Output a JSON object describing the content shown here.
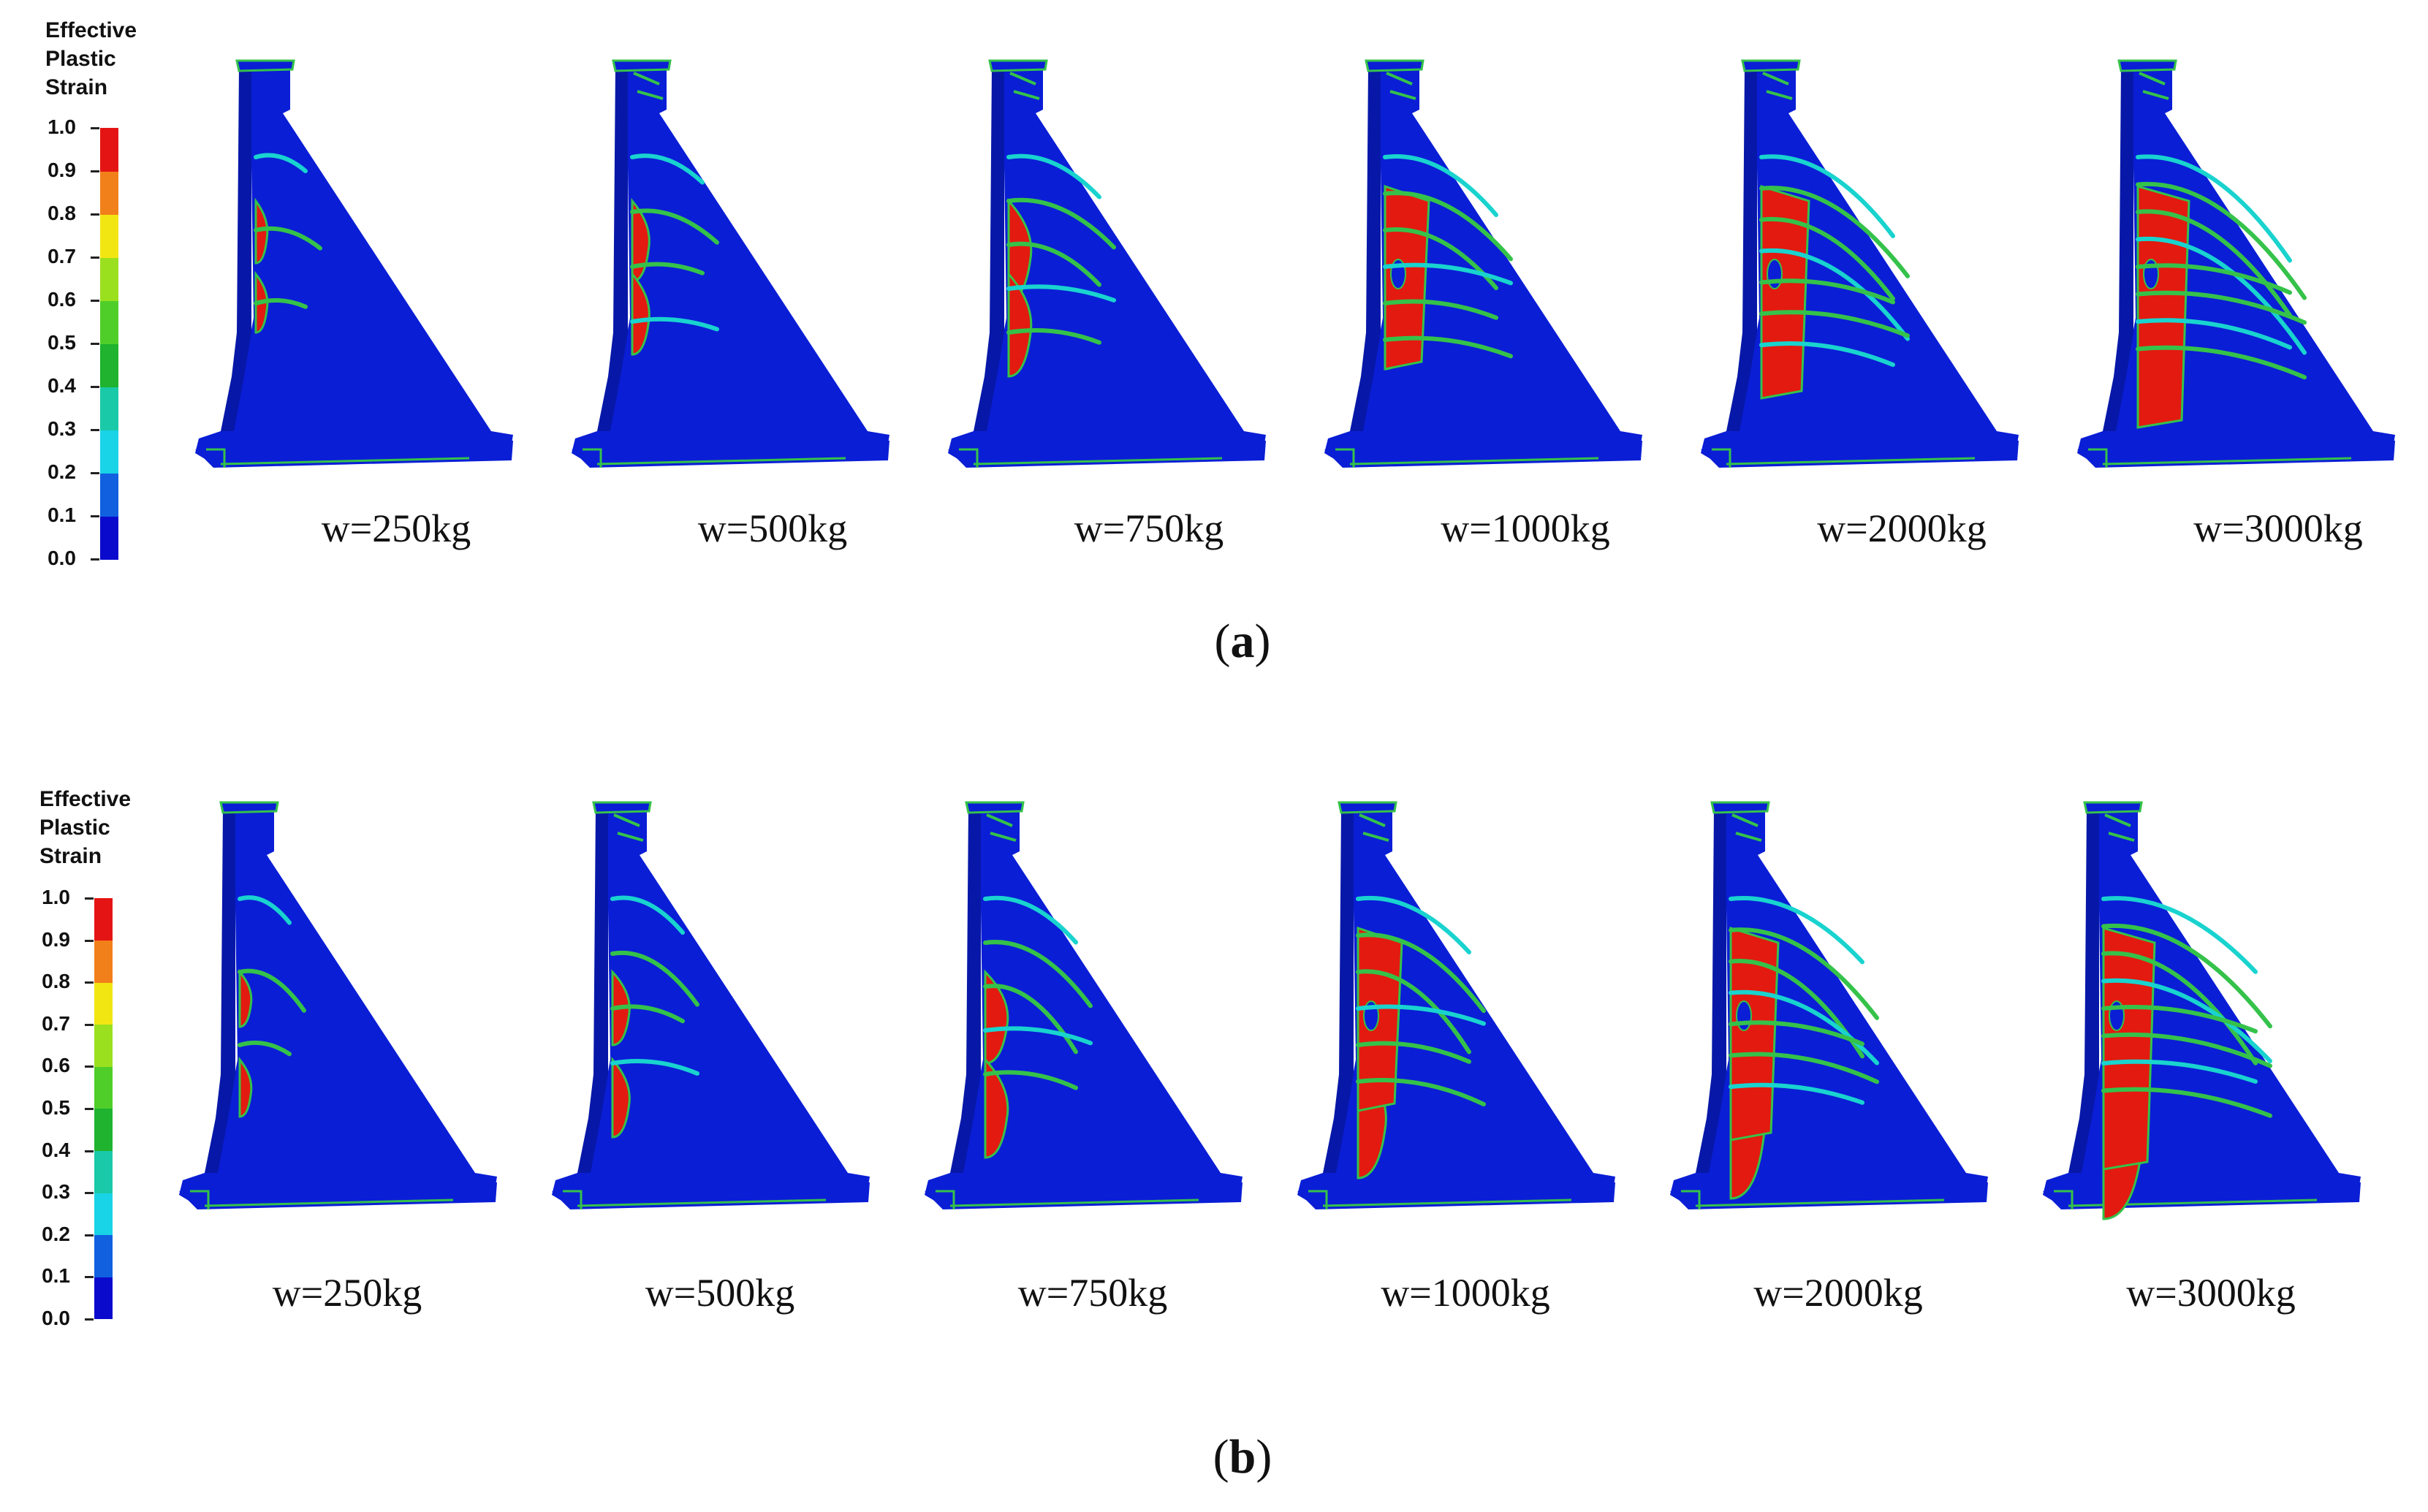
{
  "colors": {
    "blue": "#0a1ed6",
    "sideface": "#0718a8",
    "red": "#e31a0f",
    "green": "#35c24a",
    "cyan": "#19d3cf",
    "lightgreen": "#8fe03a"
  },
  "scale_colors": [
    "#0a0acc",
    "#1060e0",
    "#19d3e6",
    "#19c9a8",
    "#1fb32f",
    "#4fce2a",
    "#9be01f",
    "#f2e612",
    "#f2801a",
    "#e51414"
  ],
  "figure_a": {
    "label": "a",
    "legend": {
      "title": "Effective\nPlastic\nStrain",
      "ticks": [
        "1.0",
        "0.9",
        "0.8",
        "0.7",
        "0.6",
        "0.5",
        "0.4",
        "0.3",
        "0.2",
        "0.1",
        "0.0"
      ]
    },
    "panels": [
      {
        "label": "w=250kg",
        "damage": 1
      },
      {
        "label": "w=500kg",
        "damage": 2
      },
      {
        "label": "w=750kg",
        "damage": 3
      },
      {
        "label": "w=1000kg",
        "damage": 4
      },
      {
        "label": "w=2000kg",
        "damage": 5
      },
      {
        "label": "w=3000kg",
        "damage": 6
      }
    ]
  },
  "figure_b": {
    "label": "b",
    "legend": {
      "title": "Effective\nPlastic\nStrain",
      "ticks": [
        "1.0",
        "0.9",
        "0.8",
        "0.7",
        "0.6",
        "0.5",
        "0.4",
        "0.3",
        "0.2",
        "0.1",
        "0.0"
      ]
    },
    "panels": [
      {
        "label": "w=250kg",
        "damage": 1
      },
      {
        "label": "w=500kg",
        "damage": 2
      },
      {
        "label": "w=750kg",
        "damage": 3
      },
      {
        "label": "w=1000kg",
        "damage": 4
      },
      {
        "label": "w=2000kg",
        "damage": 5
      },
      {
        "label": "w=3000kg",
        "damage": 6
      }
    ]
  }
}
